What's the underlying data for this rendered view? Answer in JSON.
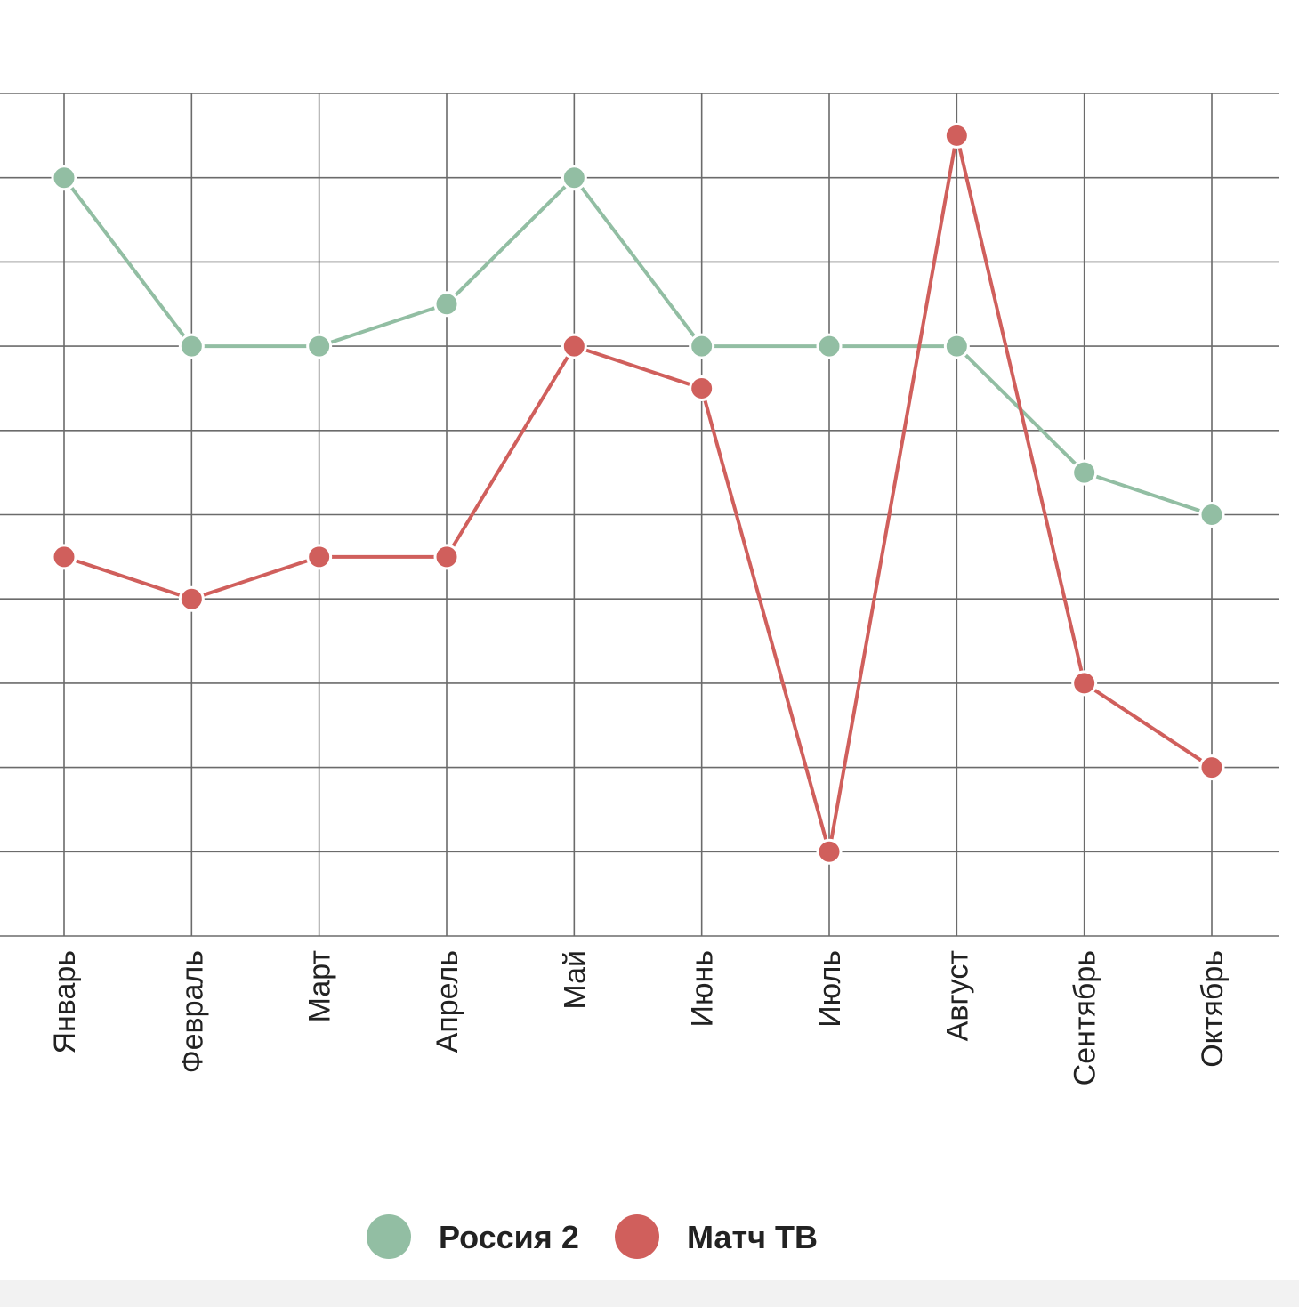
{
  "chart_data": {
    "type": "line",
    "categories": [
      "Январь",
      "Февраль",
      "Март",
      "Апрель",
      "Май",
      "Июнь",
      "Июль",
      "Август",
      "Сентябрь",
      "Октябрь"
    ],
    "series": [
      {
        "name": "Россия 2",
        "color": "#92bea3",
        "values": [
          9,
          7,
          7,
          7.5,
          9,
          7,
          7,
          7,
          5.5,
          5
        ]
      },
      {
        "name": "Матч ТВ",
        "color": "#d05f5c",
        "values": [
          4.5,
          4,
          4.5,
          4.5,
          7,
          6.5,
          1,
          9.5,
          3,
          2
        ]
      }
    ],
    "ylim": [
      0,
      10
    ],
    "grid": true,
    "legend": "bottom-center"
  }
}
